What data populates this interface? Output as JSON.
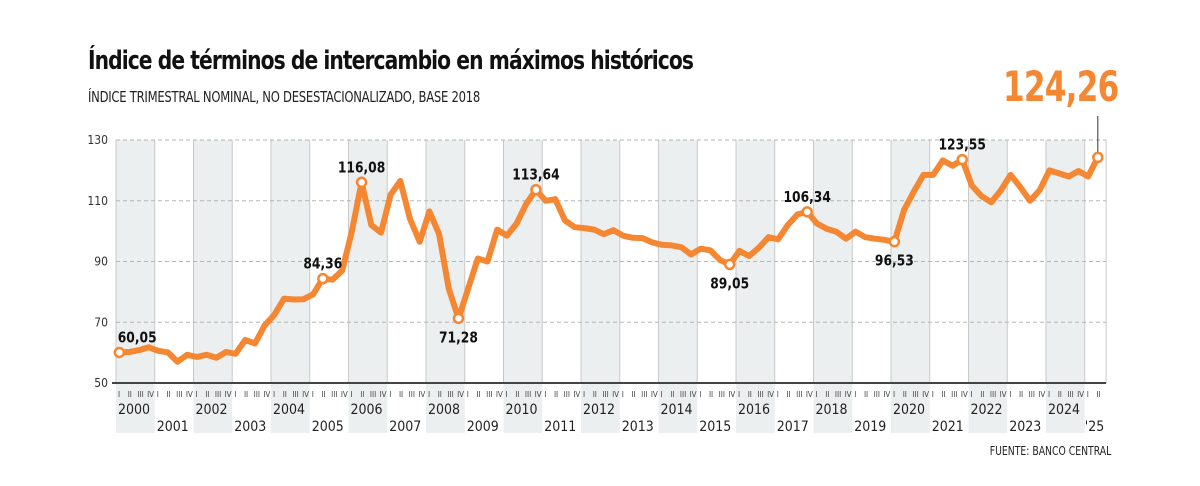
{
  "header": {
    "title": "Índice de términos de intercambio en máximos históricos",
    "subtitle": "ÍNDICE TRIMESTRAL NOMINAL, NO DESESTACIONALIZADO, BASE 2018",
    "highlight_value": "124,26",
    "source": "FUENTE: BANCO CENTRAL"
  },
  "colors": {
    "line": "#f58733",
    "band": "#ecefef",
    "highlight": "#f58733"
  },
  "chart_data": {
    "type": "line",
    "title": "Índice de términos de intercambio en máximos históricos",
    "subtitle": "ÍNDICE TRIMESTRAL NOMINAL, NO DESESTACIONALIZADO, BASE 2018",
    "xlabel": "",
    "ylabel": "",
    "ylim": [
      50,
      130
    ],
    "yticks": [
      50,
      70,
      90,
      110,
      130
    ],
    "grid": true,
    "quarter_labels": [
      "I",
      "II",
      "III",
      "IV"
    ],
    "years": [
      "2000",
      "2001",
      "2002",
      "2003",
      "2004",
      "2005",
      "2006",
      "2007",
      "2008",
      "2009",
      "2010",
      "2011",
      "2012",
      "2013",
      "2014",
      "2015",
      "2016",
      "2017",
      "2018",
      "2019",
      "2020",
      "2021",
      "2022",
      "2023",
      "2024",
      "'25"
    ],
    "start": "2000-Q1",
    "series": [
      {
        "name": "Índice de términos de intercambio",
        "values": [
          60.05,
          60.2,
          60.8,
          61.8,
          60.6,
          60.1,
          57.0,
          59.3,
          58.6,
          59.3,
          58.3,
          60.2,
          59.6,
          64.2,
          63.0,
          69.0,
          72.5,
          77.8,
          77.5,
          77.6,
          79.2,
          84.36,
          84.0,
          87.0,
          100.0,
          116.08,
          102.0,
          99.5,
          112.0,
          116.5,
          104.0,
          96.5,
          106.5,
          99.0,
          81.0,
          71.28,
          81.0,
          91.0,
          90.0,
          100.5,
          98.5,
          102.5,
          109.0,
          113.64,
          110.0,
          110.5,
          103.5,
          101.3,
          101.0,
          100.5,
          99.0,
          100.3,
          98.5,
          97.8,
          97.7,
          96.3,
          95.5,
          95.3,
          94.7,
          92.3,
          94.2,
          93.7,
          90.5,
          89.05,
          93.5,
          91.8,
          94.5,
          98.0,
          97.3,
          102.0,
          105.5,
          106.34,
          102.5,
          100.8,
          99.8,
          97.5,
          99.8,
          98.0,
          97.5,
          97.1,
          96.53,
          107.0,
          113.0,
          118.5,
          118.5,
          123.3,
          121.5,
          123.55,
          115.0,
          111.5,
          109.5,
          113.5,
          118.5,
          114.5,
          110.0,
          113.5,
          120.0,
          119.0,
          118.0,
          119.8,
          118.0,
          124.26
        ]
      }
    ],
    "annotations": [
      {
        "label": "60,05",
        "quarter": "2000-Q1",
        "value": 60.05,
        "position": "above"
      },
      {
        "label": "84,36",
        "quarter": "2005-Q2",
        "value": 84.36,
        "position": "above"
      },
      {
        "label": "116,08",
        "quarter": "2006-Q2",
        "value": 116.08,
        "position": "above"
      },
      {
        "label": "71,28",
        "quarter": "2008-Q4",
        "value": 71.28,
        "position": "below"
      },
      {
        "label": "113,64",
        "quarter": "2010-Q4",
        "value": 113.64,
        "position": "above"
      },
      {
        "label": "89,05",
        "quarter": "2015-Q4",
        "value": 89.05,
        "position": "below"
      },
      {
        "label": "106,34",
        "quarter": "2017-Q4",
        "value": 106.34,
        "position": "above"
      },
      {
        "label": "96,53",
        "quarter": "2020-Q1",
        "value": 96.53,
        "position": "below"
      },
      {
        "label": "123,55",
        "quarter": "2021-Q4",
        "value": 123.55,
        "position": "above"
      },
      {
        "label": "124,26",
        "quarter": "2025-Q2",
        "value": 124.26,
        "position": "headline"
      }
    ]
  }
}
